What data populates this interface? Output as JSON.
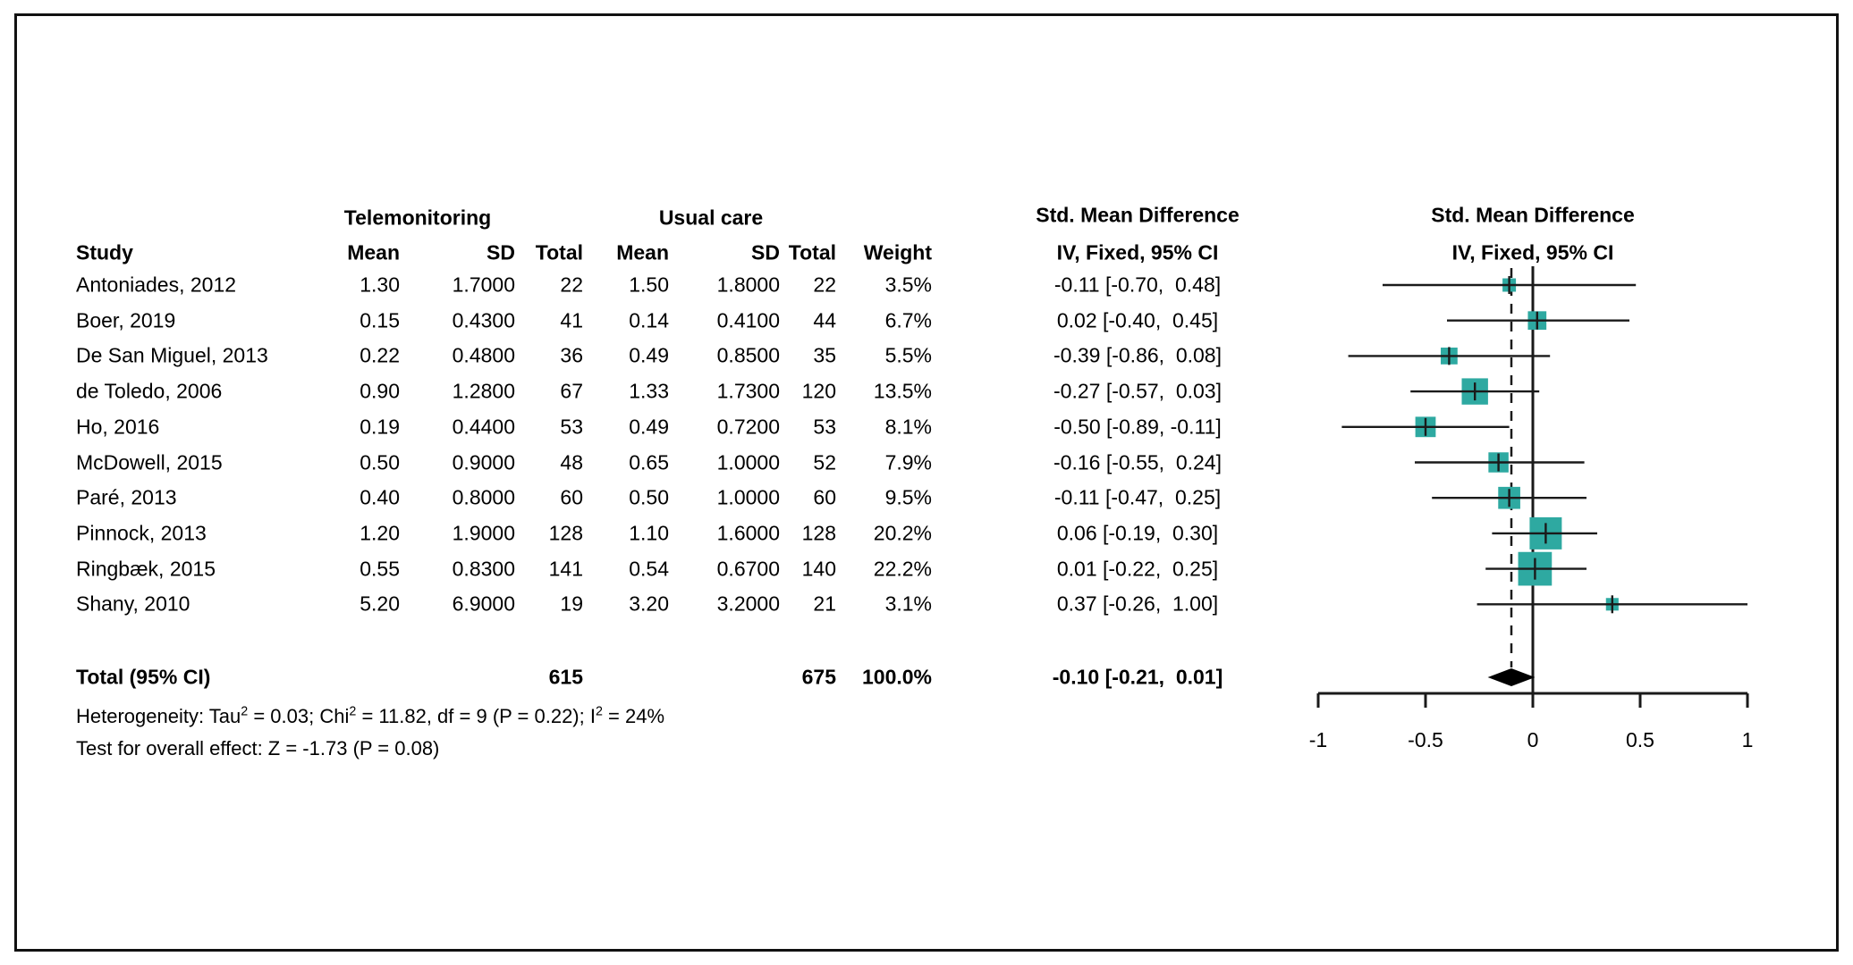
{
  "figure_title": "Forest plot: Telemonitoring vs Usual care, Std. Mean Difference (IV, Fixed, 95% CI)",
  "table": {
    "group_headers": {
      "experimental": "Telemonitoring",
      "control": "Usual care"
    },
    "column_headers": {
      "study": "Study",
      "mean_exp": "Mean",
      "sd_exp": "SD",
      "total_exp": "Total",
      "mean_ctrl": "Mean",
      "sd_ctrl": "SD",
      "total_ctrl": "Total",
      "weight": "Weight",
      "effect_title": "Std. Mean Difference",
      "effect_subtitle": "IV, Fixed, 95% CI"
    }
  },
  "plot_headers": {
    "effect_title": "Std. Mean Difference",
    "effect_subtitle": "IV, Fixed, 95% CI"
  },
  "footnotes": {
    "heterogeneity_parts": [
      {
        "text": "Heterogeneity: Tau",
        "sup": false
      },
      {
        "text": "2",
        "sup": true
      },
      {
        "text": " = 0.03; Chi",
        "sup": false
      },
      {
        "text": "2",
        "sup": true
      },
      {
        "text": " = 11.82, df = 9 (P = 0.22); I",
        "sup": false
      },
      {
        "text": "2",
        "sup": true
      },
      {
        "text": " = 24%",
        "sup": false
      }
    ],
    "overall_effect": "Test for overall effect: Z = -1.73 (P = 0.08)"
  },
  "chart_data": {
    "type": "forest",
    "title": "Std. Mean Difference",
    "subtitle": "IV, Fixed, 95% CI",
    "xlim": [
      -1,
      1
    ],
    "x_ticks": [
      "-1",
      "-0.5",
      "0",
      "0.5",
      "1"
    ],
    "x_tick_values": [
      -1,
      -0.5,
      0,
      0.5,
      1
    ],
    "null_line_value": 0,
    "overall_line_value": -0.1,
    "marker_color": "#2EA9A1",
    "line_color": "#1a1a1a",
    "grid": false,
    "studies": [
      {
        "name": "Antoniades, 2012",
        "exp_mean": "1.30",
        "exp_sd": "1.7000",
        "exp_total": "22",
        "ctrl_mean": "1.50",
        "ctrl_sd": "1.8000",
        "ctrl_total": "22",
        "weight": "3.5%",
        "weight_pct": 3.5,
        "ci_label": "-0.11 [-0.70,  0.48]",
        "smd": -0.11,
        "ci_low": -0.7,
        "ci_high": 0.48
      },
      {
        "name": "Boer, 2019",
        "exp_mean": "0.15",
        "exp_sd": "0.4300",
        "exp_total": "41",
        "ctrl_mean": "0.14",
        "ctrl_sd": "0.4100",
        "ctrl_total": "44",
        "weight": "6.7%",
        "weight_pct": 6.7,
        "ci_label": "0.02 [-0.40,  0.45]",
        "smd": 0.02,
        "ci_low": -0.4,
        "ci_high": 0.45
      },
      {
        "name": "De San Miguel, 2013",
        "exp_mean": "0.22",
        "exp_sd": "0.4800",
        "exp_total": "36",
        "ctrl_mean": "0.49",
        "ctrl_sd": "0.8500",
        "ctrl_total": "35",
        "weight": "5.5%",
        "weight_pct": 5.5,
        "ci_label": "-0.39 [-0.86,  0.08]",
        "smd": -0.39,
        "ci_low": -0.86,
        "ci_high": 0.08
      },
      {
        "name": "de Toledo, 2006",
        "exp_mean": "0.90",
        "exp_sd": "1.2800",
        "exp_total": "67",
        "ctrl_mean": "1.33",
        "ctrl_sd": "1.7300",
        "ctrl_total": "120",
        "weight": "13.5%",
        "weight_pct": 13.5,
        "ci_label": "-0.27 [-0.57,  0.03]",
        "smd": -0.27,
        "ci_low": -0.57,
        "ci_high": 0.03
      },
      {
        "name": "Ho, 2016",
        "exp_mean": "0.19",
        "exp_sd": "0.4400",
        "exp_total": "53",
        "ctrl_mean": "0.49",
        "ctrl_sd": "0.7200",
        "ctrl_total": "53",
        "weight": "8.1%",
        "weight_pct": 8.1,
        "ci_label": "-0.50 [-0.89, -0.11]",
        "smd": -0.5,
        "ci_low": -0.89,
        "ci_high": -0.11
      },
      {
        "name": "McDowell, 2015",
        "exp_mean": "0.50",
        "exp_sd": "0.9000",
        "exp_total": "48",
        "ctrl_mean": "0.65",
        "ctrl_sd": "1.0000",
        "ctrl_total": "52",
        "weight": "7.9%",
        "weight_pct": 7.9,
        "ci_label": "-0.16 [-0.55,  0.24]",
        "smd": -0.16,
        "ci_low": -0.55,
        "ci_high": 0.24
      },
      {
        "name": "Paré, 2013",
        "exp_mean": "0.40",
        "exp_sd": "0.8000",
        "exp_total": "60",
        "ctrl_mean": "0.50",
        "ctrl_sd": "1.0000",
        "ctrl_total": "60",
        "weight": "9.5%",
        "weight_pct": 9.5,
        "ci_label": "-0.11 [-0.47,  0.25]",
        "smd": -0.11,
        "ci_low": -0.47,
        "ci_high": 0.25
      },
      {
        "name": "Pinnock, 2013",
        "exp_mean": "1.20",
        "exp_sd": "1.9000",
        "exp_total": "128",
        "ctrl_mean": "1.10",
        "ctrl_sd": "1.6000",
        "ctrl_total": "128",
        "weight": "20.2%",
        "weight_pct": 20.2,
        "ci_label": "0.06 [-0.19,  0.30]",
        "smd": 0.06,
        "ci_low": -0.19,
        "ci_high": 0.3
      },
      {
        "name": "Ringbæk, 2015",
        "exp_mean": "0.55",
        "exp_sd": "0.8300",
        "exp_total": "141",
        "ctrl_mean": "0.54",
        "ctrl_sd": "0.6700",
        "ctrl_total": "140",
        "weight": "22.2%",
        "weight_pct": 22.2,
        "ci_label": "0.01 [-0.22,  0.25]",
        "smd": 0.01,
        "ci_low": -0.22,
        "ci_high": 0.25
      },
      {
        "name": "Shany, 2010",
        "exp_mean": "5.20",
        "exp_sd": "6.9000",
        "exp_total": "19",
        "ctrl_mean": "3.20",
        "ctrl_sd": "3.2000",
        "ctrl_total": "21",
        "weight": "3.1%",
        "weight_pct": 3.1,
        "ci_label": "0.37 [-0.26,  1.00]",
        "smd": 0.37,
        "ci_low": -0.26,
        "ci_high": 1.0
      }
    ],
    "total": {
      "label": "Total (95% CI)",
      "exp_total": "615",
      "ctrl_total": "675",
      "weight": "100.0%",
      "ci_label": "-0.10 [-0.21,  0.01]",
      "smd": -0.1,
      "ci_low": -0.21,
      "ci_high": 0.01
    }
  }
}
